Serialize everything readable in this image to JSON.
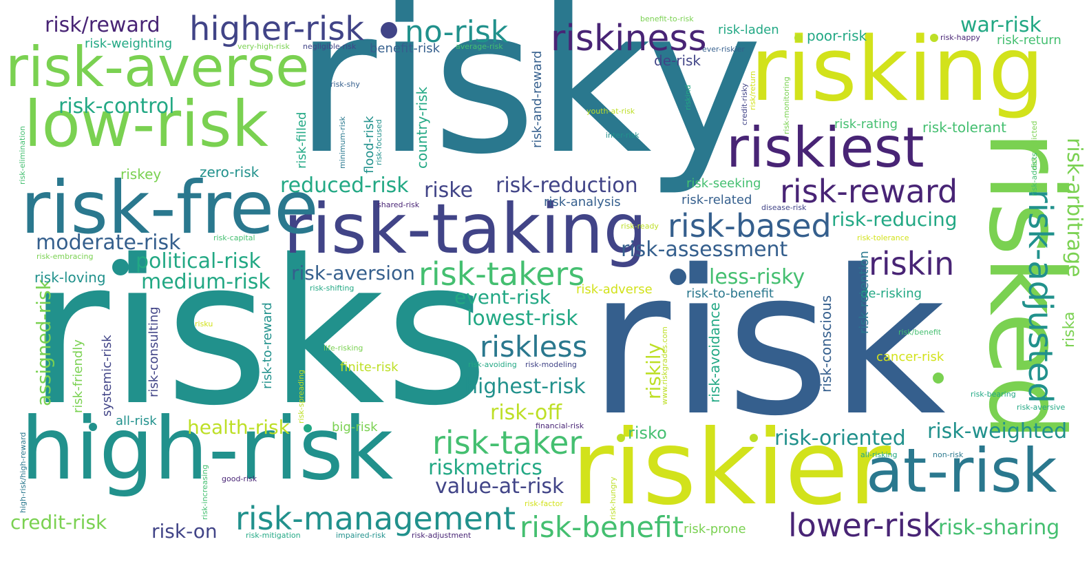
{
  "words": [
    "risky",
    "risks",
    "risk",
    "risking",
    "risked",
    "riskier",
    "risk-taking",
    "high-risk",
    "risk-free",
    "low-risk",
    "risk-averse",
    "riskiest",
    "at-risk",
    "higher-risk",
    "risk-adjusted",
    "riskiness",
    "risk-reward",
    "risk-based",
    "risk-management",
    "lower-risk",
    "risk-taker",
    "risk-takers",
    "riskin",
    "risk-benefit",
    "riskless",
    "no-risk",
    "risk/reward",
    "risk-control",
    "risk-reduction",
    "risk-assessment",
    "risk-arbitrage",
    "war-risk",
    "reduced-risk",
    "moderate-risk",
    "political-risk",
    "medium-risk",
    "less-risky",
    "risk-weighted",
    "risk-oriented",
    "risk-sharing",
    "highest-risk",
    "lowest-risk",
    "riskmetrics",
    "value-at-risk",
    "risk-aversion",
    "event-risk",
    "risk-reducing",
    "risk-off",
    "assigned-risk",
    "credit-risk",
    "risk-on",
    "health-risk",
    "riske",
    "riska",
    "risk-weighting",
    "benefit-risk",
    "risk-laden",
    "poor-risk",
    "risk-return",
    "de-risk",
    "risk-rating",
    "risk-tolerant",
    "risk-seeking",
    "risk-related",
    "risk-analysis",
    "risk-adverse",
    "risk-to-benefit",
    "de-risking",
    "cancer-risk",
    "risk-prone",
    "riskily",
    "risk-conscious",
    "risk-avoidance",
    "risk-consulting",
    "risk-to-reward",
    "risk-filled",
    "country-risk",
    "risk-and-reward",
    "flood-risk",
    "zero-risk",
    "riskey",
    "risk-loving",
    "systemic-risk",
    "risk-friendly",
    "all-risk",
    "risko",
    "big-risk",
    "finite-risk",
    "risk-retention",
    "very-high-risk",
    "negligible-risk",
    "average-risk",
    "benefit-to-risk",
    "ever-riskier",
    "risk-happy",
    "risk-shy",
    "youth-at-risk",
    "inter-risk",
    "riskind",
    "credit-risky",
    "risk/return",
    "risk-monitoring",
    "risk-addicted",
    "risk-addicts",
    "risk-elimination",
    "minimum-risk",
    "risk-focused",
    "shared-risk",
    "disease-risk",
    "risk-ready",
    "risk-tolerance",
    "risk-capital",
    "risk-embracing",
    "risk-shifting",
    "risku",
    "life-risking",
    "risk-avoiding",
    "risk-modeling",
    "www.riskgrades.com",
    "risk/benefit",
    "risk-bearing",
    "risk-aversive",
    "financial-risk",
    "all-risking",
    "non-risk",
    "high-risk/high-reward",
    "risk-increasing",
    "good-risk",
    "risk-spreading",
    "risk-hungry",
    "risk-factor",
    "risk-mitigation",
    "impaired-risk",
    "risk-adjustment"
  ],
  "colors": {
    "dark_purple": "#482475",
    "indigo": "#414487",
    "blue": "#355f8d",
    "steel": "#2a788e",
    "teal": "#21918c",
    "green_teal": "#22a884",
    "green": "#44bf70",
    "light_green": "#7ad151",
    "yellow_green": "#bddf26",
    "yellow": "#d2e21b"
  }
}
